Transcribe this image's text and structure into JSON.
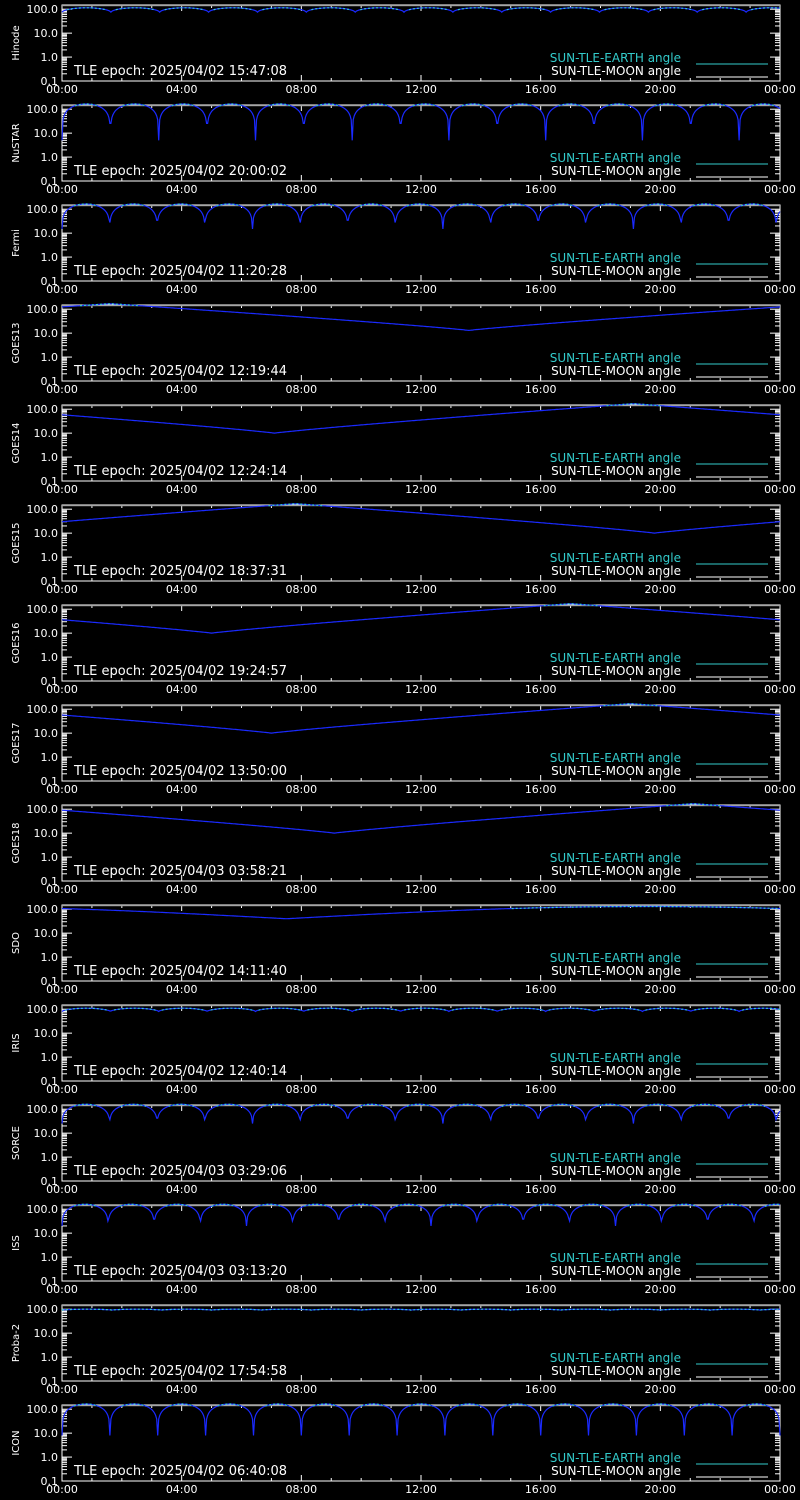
{
  "colors": {
    "background": "#000000",
    "axis": "#ffffff",
    "sun_earth": "#33cccc",
    "sun_moon": "#ffffff",
    "curve": "#1a2aff",
    "ref_line": "#888888"
  },
  "legend": {
    "earth_label": "SUN-TLE-EARTH angle",
    "moon_label": "SUN-TLE-MOON angle"
  },
  "x_ticks": [
    "00:00",
    "04:00",
    "08:00",
    "12:00",
    "16:00",
    "20:00",
    "00:00"
  ],
  "y_ticks": [
    "100.0",
    "10.0",
    "1.0",
    "0.1"
  ],
  "chart_data": [
    {
      "type": "line",
      "scale": "log",
      "ylabel": "Hinode",
      "epoch": "TLE epoch: 2025/04/02 15:47:08",
      "ylim": [
        0.1,
        150
      ],
      "series": [
        {
          "name": "SUN-TLE-EARTH angle",
          "pattern": "periodic",
          "period_min": 98,
          "max_deg": 115,
          "min_deg": 75
        }
      ]
    },
    {
      "type": "line",
      "scale": "log",
      "ylabel": "NuSTAR",
      "epoch": "TLE epoch: 2025/04/02 20:00:02",
      "ylim": [
        0.1,
        150
      ],
      "series": [
        {
          "name": "SUN-TLE-EARTH angle",
          "pattern": "periodic",
          "period_min": 97,
          "max_deg": 165,
          "min_deg": 5
        }
      ]
    },
    {
      "type": "line",
      "scale": "log",
      "ylabel": "Fermi",
      "epoch": "TLE epoch: 2025/04/02 11:20:28",
      "ylim": [
        0.1,
        150
      ],
      "series": [
        {
          "name": "SUN-TLE-EARTH angle",
          "pattern": "periodic",
          "period_min": 95.5,
          "max_deg": 165,
          "min_deg": 15
        }
      ]
    },
    {
      "type": "line",
      "scale": "log",
      "ylabel": "GOES13",
      "epoch": "TLE epoch: 2025/04/02 12:19:44",
      "ylim": [
        0.1,
        150
      ],
      "series": [
        {
          "name": "SUN-TLE-EARTH angle",
          "pattern": "daily",
          "min_time_h": 13.6,
          "max_deg": 170,
          "min_deg": 13
        }
      ]
    },
    {
      "type": "line",
      "scale": "log",
      "ylabel": "GOES14",
      "epoch": "TLE epoch: 2025/04/02 12:24:14",
      "ylim": [
        0.1,
        150
      ],
      "series": [
        {
          "name": "SUN-TLE-EARTH angle",
          "pattern": "daily",
          "min_time_h": 7.1,
          "max_deg": 170,
          "min_deg": 10
        }
      ]
    },
    {
      "type": "line",
      "scale": "log",
      "ylabel": "GOES15",
      "epoch": "TLE epoch: 2025/04/02 18:37:31",
      "ylim": [
        0.1,
        150
      ],
      "series": [
        {
          "name": "SUN-TLE-EARTH angle",
          "pattern": "daily",
          "min_time_h": 19.8,
          "max_deg": 170,
          "min_deg": 10
        }
      ]
    },
    {
      "type": "line",
      "scale": "log",
      "ylabel": "GOES16",
      "epoch": "TLE epoch: 2025/04/02 19:24:57",
      "ylim": [
        0.1,
        150
      ],
      "series": [
        {
          "name": "SUN-TLE-EARTH angle",
          "pattern": "daily",
          "min_time_h": 5.0,
          "max_deg": 170,
          "min_deg": 10
        }
      ]
    },
    {
      "type": "line",
      "scale": "log",
      "ylabel": "GOES17",
      "epoch": "TLE epoch: 2025/04/02 13:50:00",
      "ylim": [
        0.1,
        150
      ],
      "series": [
        {
          "name": "SUN-TLE-EARTH angle",
          "pattern": "daily",
          "min_time_h": 7.0,
          "max_deg": 170,
          "min_deg": 10
        }
      ]
    },
    {
      "type": "line",
      "scale": "log",
      "ylabel": "GOES18",
      "epoch": "TLE epoch: 2025/04/03 03:58:21",
      "ylim": [
        0.1,
        150
      ],
      "series": [
        {
          "name": "SUN-TLE-EARTH angle",
          "pattern": "daily",
          "min_time_h": 9.1,
          "max_deg": 170,
          "min_deg": 10
        }
      ]
    },
    {
      "type": "line",
      "scale": "log",
      "ylabel": "SDO",
      "epoch": "TLE epoch: 2025/04/02 14:11:40",
      "ylim": [
        0.1,
        150
      ],
      "series": [
        {
          "name": "SUN-TLE-EARTH angle",
          "pattern": "daily_smooth",
          "min_time_h": 7.5,
          "max_deg": 130,
          "min_deg": 40
        }
      ]
    },
    {
      "type": "line",
      "scale": "log",
      "ylabel": "IRIS",
      "epoch": "TLE epoch: 2025/04/02 12:40:14",
      "ylim": [
        0.1,
        150
      ],
      "series": [
        {
          "name": "SUN-TLE-EARTH angle",
          "pattern": "periodic",
          "period_min": 97,
          "max_deg": 110,
          "min_deg": 80
        }
      ]
    },
    {
      "type": "line",
      "scale": "log",
      "ylabel": "SORCE",
      "epoch": "TLE epoch: 2025/04/03 03:29:06",
      "ylim": [
        0.1,
        150
      ],
      "series": [
        {
          "name": "SUN-TLE-EARTH angle",
          "pattern": "periodic",
          "period_min": 95.5,
          "max_deg": 160,
          "min_deg": 25
        }
      ]
    },
    {
      "type": "line",
      "scale": "log",
      "ylabel": "ISS",
      "epoch": "TLE epoch: 2025/04/03 03:13:20",
      "ylim": [
        0.1,
        150
      ],
      "series": [
        {
          "name": "SUN-TLE-EARTH angle",
          "pattern": "periodic",
          "period_min": 92.5,
          "max_deg": 160,
          "min_deg": 20
        }
      ]
    },
    {
      "type": "line",
      "scale": "log",
      "ylabel": "Proba-2",
      "epoch": "TLE epoch: 2025/04/02 17:54:58",
      "ylim": [
        0.1,
        150
      ],
      "series": [
        {
          "name": "SUN-TLE-EARTH angle",
          "pattern": "periodic",
          "period_min": 100,
          "max_deg": 100,
          "min_deg": 92
        }
      ]
    },
    {
      "type": "line",
      "scale": "log",
      "ylabel": "ICON",
      "epoch": "TLE epoch: 2025/04/02 06:40:08",
      "ylim": [
        0.1,
        150
      ],
      "series": [
        {
          "name": "SUN-TLE-EARTH angle",
          "pattern": "periodic",
          "period_min": 96,
          "max_deg": 165,
          "min_deg": 8
        }
      ]
    }
  ]
}
